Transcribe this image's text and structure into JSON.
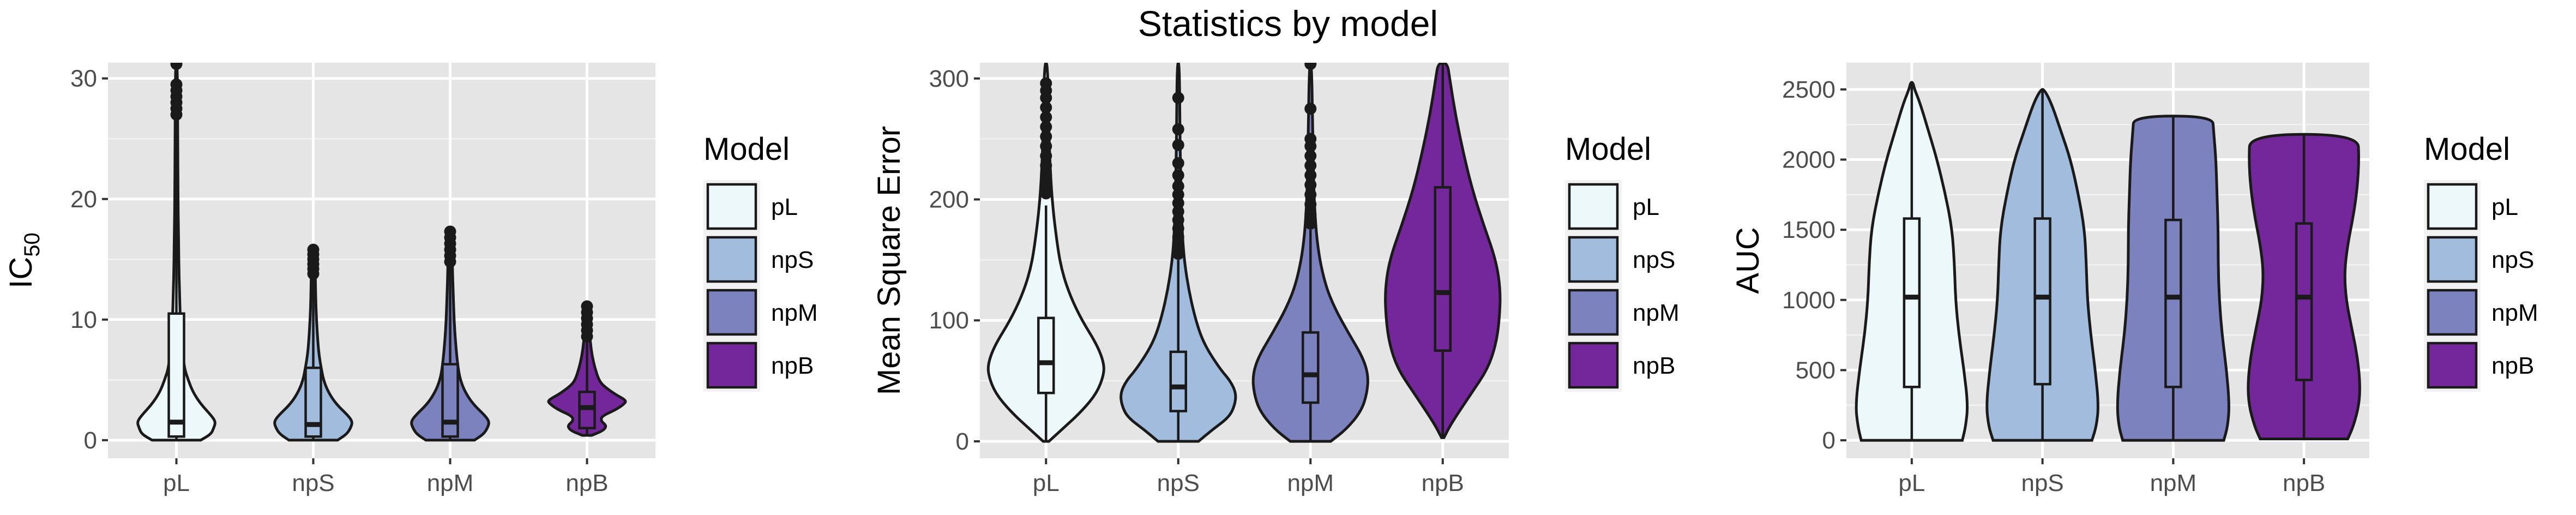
{
  "figure": {
    "title": "Statistics by model"
  },
  "legend": {
    "title": "Model",
    "entries": [
      {
        "label": "pL",
        "color": "#edf8fb"
      },
      {
        "label": "npS",
        "color": "#a1bcdc"
      },
      {
        "label": "npM",
        "color": "#7b82bd"
      },
      {
        "label": "npB",
        "color": "#74279a"
      }
    ]
  },
  "chart_data": [
    {
      "type": "violin",
      "ylabel": "IC",
      "ylabel_sub": "50",
      "categories": [
        "pL",
        "npS",
        "npM",
        "npB"
      ],
      "ylim": [
        -1.5,
        31.3
      ],
      "yticks": [
        0,
        10,
        20,
        30
      ],
      "grid": true,
      "legend_position": "right",
      "series": [
        {
          "name": "pL",
          "box": {
            "whisker_low": 0,
            "q1": 0.3,
            "median": 1.5,
            "q3": 10.5,
            "whisker_high": 26.5
          },
          "max": 31.3,
          "density": [
            [
              0,
              0.62
            ],
            [
              0.5,
              0.88
            ],
            [
              1,
              0.95
            ],
            [
              1.5,
              1.0
            ],
            [
              2,
              0.9
            ],
            [
              3,
              0.62
            ],
            [
              4,
              0.42
            ],
            [
              5,
              0.3
            ],
            [
              6,
              0.2
            ],
            [
              8,
              0.13
            ],
            [
              10,
              0.1
            ],
            [
              12,
              0.08
            ],
            [
              15,
              0.06
            ],
            [
              18,
              0.05
            ],
            [
              20,
              0.04
            ],
            [
              25,
              0.035
            ],
            [
              28,
              0.03
            ],
            [
              31.3,
              0.02
            ]
          ],
          "outliers": [
            27,
            27.5,
            28,
            28.5,
            29,
            29.5,
            31.2
          ]
        },
        {
          "name": "npS",
          "box": {
            "whisker_low": 0,
            "q1": 0.3,
            "median": 1.3,
            "q3": 6.0,
            "whisker_high": 13.5
          },
          "max": 16,
          "density": [
            [
              0,
              0.62
            ],
            [
              0.5,
              0.85
            ],
            [
              1,
              0.95
            ],
            [
              1.5,
              1.0
            ],
            [
              2,
              0.9
            ],
            [
              3,
              0.58
            ],
            [
              4,
              0.38
            ],
            [
              5,
              0.26
            ],
            [
              6,
              0.2
            ],
            [
              7,
              0.15
            ],
            [
              8,
              0.12
            ],
            [
              10,
              0.08
            ],
            [
              12,
              0.06
            ],
            [
              14,
              0.05
            ],
            [
              16,
              0.03
            ]
          ],
          "outliers": [
            13.8,
            14.2,
            14.6,
            15.0,
            15.4,
            15.8
          ]
        },
        {
          "name": "npM",
          "box": {
            "whisker_low": 0,
            "q1": 0.3,
            "median": 1.5,
            "q3": 6.3,
            "whisker_high": 14.5
          },
          "max": 17.5,
          "density": [
            [
              0,
              0.62
            ],
            [
              0.5,
              0.85
            ],
            [
              1,
              0.95
            ],
            [
              1.5,
              1.0
            ],
            [
              2,
              0.9
            ],
            [
              3,
              0.58
            ],
            [
              4,
              0.38
            ],
            [
              5,
              0.26
            ],
            [
              6,
              0.2
            ],
            [
              8,
              0.14
            ],
            [
              10,
              0.1
            ],
            [
              12,
              0.08
            ],
            [
              14,
              0.06
            ],
            [
              16,
              0.05
            ],
            [
              17.5,
              0.03
            ]
          ],
          "outliers": [
            14.8,
            15.3,
            15.8,
            16.3,
            16.8,
            17.3
          ]
        },
        {
          "name": "npB",
          "box": {
            "whisker_low": 0.5,
            "q1": 1.0,
            "median": 2.7,
            "q3": 4.0,
            "whisker_high": 8.3
          },
          "max": 11.3,
          "density": [
            [
              0.4,
              0.12
            ],
            [
              0.8,
              0.42
            ],
            [
              1.2,
              0.5
            ],
            [
              1.6,
              0.35
            ],
            [
              2,
              0.38
            ],
            [
              2.5,
              0.72
            ],
            [
              3,
              0.95
            ],
            [
              3.3,
              1.0
            ],
            [
              3.8,
              0.72
            ],
            [
              4.5,
              0.42
            ],
            [
              5,
              0.3
            ],
            [
              6,
              0.2
            ],
            [
              7,
              0.13
            ],
            [
              8,
              0.09
            ],
            [
              9,
              0.06
            ],
            [
              10,
              0.045
            ],
            [
              11.3,
              0.03
            ]
          ],
          "outliers": [
            8.6,
            9.1,
            9.6,
            10.1,
            10.6,
            11.1
          ]
        }
      ]
    },
    {
      "type": "violin",
      "ylabel": "Mean Square Error",
      "categories": [
        "pL",
        "npS",
        "npM",
        "npB"
      ],
      "ylim": [
        -14,
        313
      ],
      "yticks": [
        0,
        100,
        200,
        300
      ],
      "grid": true,
      "legend_position": "right",
      "series": [
        {
          "name": "pL",
          "box": {
            "whisker_low": 0,
            "q1": 40,
            "median": 65,
            "q3": 102,
            "whisker_high": 195
          },
          "max": 313,
          "density": [
            [
              0,
              0.05
            ],
            [
              10,
              0.28
            ],
            [
              25,
              0.62
            ],
            [
              40,
              0.88
            ],
            [
              55,
              1.0
            ],
            [
              65,
              1.0
            ],
            [
              80,
              0.88
            ],
            [
              100,
              0.62
            ],
            [
              120,
              0.42
            ],
            [
              140,
              0.28
            ],
            [
              160,
              0.2
            ],
            [
              200,
              0.1
            ],
            [
              250,
              0.05
            ],
            [
              313,
              0.03
            ]
          ],
          "outliers": [
            205,
            212,
            220,
            228,
            236,
            244,
            252,
            260,
            268,
            276,
            284,
            290,
            296
          ]
        },
        {
          "name": "npS",
          "box": {
            "whisker_low": 0,
            "q1": 25,
            "median": 45,
            "q3": 74,
            "whisker_high": 150
          },
          "max": 313,
          "density": [
            [
              0,
              0.35
            ],
            [
              10,
              0.6
            ],
            [
              20,
              0.88
            ],
            [
              30,
              0.98
            ],
            [
              40,
              1.0
            ],
            [
              50,
              0.9
            ],
            [
              60,
              0.72
            ],
            [
              80,
              0.45
            ],
            [
              100,
              0.3
            ],
            [
              130,
              0.16
            ],
            [
              160,
              0.08
            ],
            [
              200,
              0.05
            ],
            [
              250,
              0.03
            ],
            [
              313,
              0.02
            ]
          ],
          "outliers": [
            155,
            162,
            169,
            176,
            183,
            190,
            197,
            204,
            211,
            220,
            230,
            245,
            258,
            284
          ]
        },
        {
          "name": "npM",
          "box": {
            "whisker_low": 0,
            "q1": 32,
            "median": 55,
            "q3": 90,
            "whisker_high": 175
          },
          "max": 313,
          "density": [
            [
              0,
              0.35
            ],
            [
              10,
              0.62
            ],
            [
              25,
              0.88
            ],
            [
              40,
              0.98
            ],
            [
              55,
              1.0
            ],
            [
              70,
              0.9
            ],
            [
              90,
              0.65
            ],
            [
              110,
              0.42
            ],
            [
              130,
              0.25
            ],
            [
              160,
              0.12
            ],
            [
              200,
              0.06
            ],
            [
              250,
              0.04
            ],
            [
              313,
              0.02
            ]
          ],
          "outliers": [
            180,
            188,
            196,
            204,
            212,
            220,
            228,
            236,
            244,
            250,
            275,
            312
          ]
        },
        {
          "name": "npB",
          "box": {
            "whisker_low": 3,
            "q1": 75,
            "median": 123,
            "q3": 210,
            "whisker_high": 313
          },
          "max": 313,
          "density": [
            [
              3,
              0.02
            ],
            [
              15,
              0.15
            ],
            [
              40,
              0.5
            ],
            [
              60,
              0.78
            ],
            [
              80,
              0.92
            ],
            [
              100,
              0.98
            ],
            [
              125,
              1.0
            ],
            [
              150,
              0.92
            ],
            [
              180,
              0.7
            ],
            [
              210,
              0.5
            ],
            [
              240,
              0.35
            ],
            [
              270,
              0.22
            ],
            [
              300,
              0.12
            ],
            [
              313,
              0.08
            ]
          ],
          "outliers": []
        }
      ]
    },
    {
      "type": "violin",
      "ylabel": "AUC",
      "categories": [
        "pL",
        "npS",
        "npM",
        "npB"
      ],
      "ylim": [
        -128,
        2690
      ],
      "yticks": [
        0,
        500,
        1000,
        1500,
        2000,
        2500
      ],
      "grid": true,
      "legend_position": "right",
      "series": [
        {
          "name": "pL",
          "box": {
            "whisker_low": 0,
            "q1": 380,
            "median": 1020,
            "q3": 1580,
            "whisker_high": 2550
          },
          "max": 2550,
          "density": [
            [
              0,
              0.9
            ],
            [
              100,
              0.96
            ],
            [
              250,
              1.0
            ],
            [
              500,
              0.93
            ],
            [
              750,
              0.84
            ],
            [
              1000,
              0.78
            ],
            [
              1250,
              0.76
            ],
            [
              1500,
              0.72
            ],
            [
              1750,
              0.6
            ],
            [
              2000,
              0.45
            ],
            [
              2200,
              0.3
            ],
            [
              2400,
              0.15
            ],
            [
              2500,
              0.05
            ],
            [
              2550,
              0.02
            ]
          ],
          "outliers": []
        },
        {
          "name": "npS",
          "box": {
            "whisker_low": 0,
            "q1": 400,
            "median": 1020,
            "q3": 1580,
            "whisker_high": 2500
          },
          "max": 2500,
          "density": [
            [
              0,
              0.88
            ],
            [
              100,
              0.96
            ],
            [
              250,
              1.0
            ],
            [
              500,
              0.94
            ],
            [
              750,
              0.86
            ],
            [
              1000,
              0.8
            ],
            [
              1250,
              0.78
            ],
            [
              1500,
              0.75
            ],
            [
              1750,
              0.64
            ],
            [
              2000,
              0.5
            ],
            [
              2200,
              0.33
            ],
            [
              2400,
              0.16
            ],
            [
              2500,
              0.03
            ]
          ],
          "outliers": []
        },
        {
          "name": "npM",
          "box": {
            "whisker_low": 0,
            "q1": 380,
            "median": 1020,
            "q3": 1570,
            "whisker_high": 2310
          },
          "max": 2310,
          "density": [
            [
              0,
              0.9
            ],
            [
              100,
              0.97
            ],
            [
              250,
              1.0
            ],
            [
              500,
              0.95
            ],
            [
              750,
              0.87
            ],
            [
              1000,
              0.82
            ],
            [
              1250,
              0.8
            ],
            [
              1500,
              0.8
            ],
            [
              1750,
              0.78
            ],
            [
              2000,
              0.76
            ],
            [
              2200,
              0.72
            ],
            [
              2310,
              0.7
            ]
          ],
          "outliers": []
        },
        {
          "name": "npB",
          "box": {
            "whisker_low": 10,
            "q1": 430,
            "median": 1020,
            "q3": 1545,
            "whisker_high": 2180
          },
          "max": 2180,
          "density": [
            [
              10,
              0.78
            ],
            [
              100,
              0.88
            ],
            [
              250,
              0.98
            ],
            [
              400,
              1.0
            ],
            [
              600,
              0.95
            ],
            [
              800,
              0.85
            ],
            [
              1000,
              0.75
            ],
            [
              1200,
              0.72
            ],
            [
              1400,
              0.78
            ],
            [
              1600,
              0.88
            ],
            [
              1800,
              0.95
            ],
            [
              2000,
              0.98
            ],
            [
              2180,
              0.96
            ]
          ],
          "outliers": []
        }
      ]
    }
  ]
}
